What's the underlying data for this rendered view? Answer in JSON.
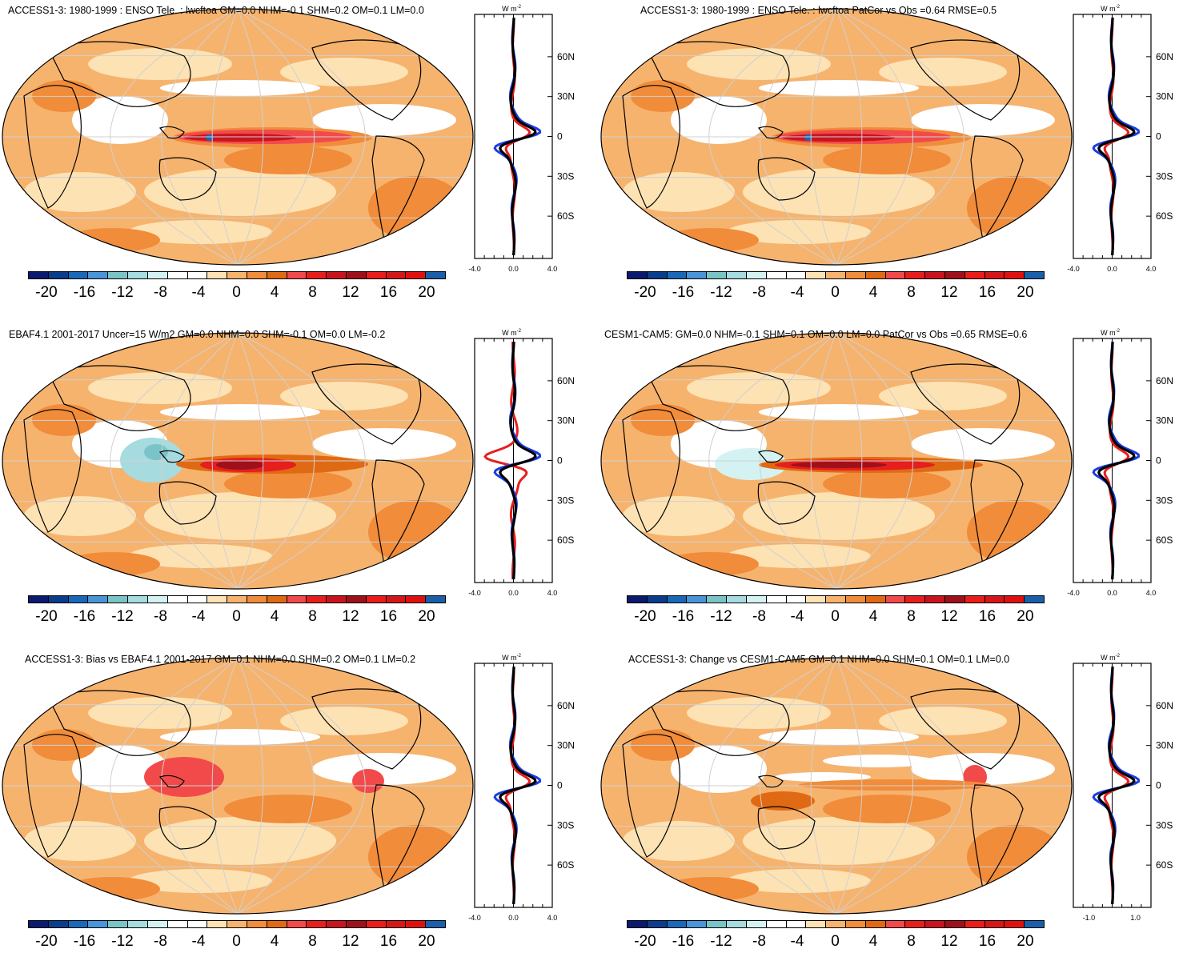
{
  "colorbar": {
    "colors": [
      "#0a1a6e",
      "#0a3d8c",
      "#1a68b8",
      "#4a94d8",
      "#7ac4c8",
      "#a6dbe0",
      "#d4f2f2",
      "#ffffff",
      "#ffffff",
      "#fde2b4",
      "#f6b36e",
      "#f08c3a",
      "#e06a14",
      "#f24a4a",
      "#e61e1e",
      "#c8141e",
      "#a0101a",
      "#ea1c1c",
      "#d41818",
      "#e11010",
      "#1a5fa8"
    ],
    "labels": [
      "-20",
      "-16",
      "-12",
      "-8",
      "-4",
      "0",
      "4",
      "8",
      "12",
      "16",
      "20"
    ]
  },
  "zonal": {
    "unit_label": "W m",
    "unit_sup": "-2",
    "lat_labels": [
      "60N",
      "30N",
      "0",
      "30S",
      "60S"
    ]
  },
  "panels": [
    {
      "id": "p1",
      "title": "ACCESS1-3: 1980-1999 : ENSO Tele. : lwcftoa GM=0.0 NHM=-0.1 SHM=0.2 OM=0.1 LM=0.0",
      "xticks": [
        "-4.0",
        "0.0",
        "4.0"
      ]
    },
    {
      "id": "p2",
      "title": "ACCESS1-3: 1980-1999 : ENSO Tele. : lwcftoa PatCor vs Obs =0.64 RMSE=0.5",
      "xticks": [
        "-4.0",
        "0.0",
        "4.0"
      ]
    },
    {
      "id": "p3",
      "title": "EBAF4.1 2001-2017 Uncer=15 W/m2 GM=0.0 NHM=0.0 SHM=-0.1 OM=0.0 LM=-0.2",
      "xticks": [
        "-4.0",
        "0.0",
        "4.0"
      ]
    },
    {
      "id": "p4",
      "title": "CESM1-CAM5: GM=0.0 NHM=-0.1 SHM=0.1 OM=0.0 LM=0.0 PatCor vs Obs =0.65 RMSE=0.6",
      "xticks": [
        "-4.0",
        "0.0",
        "4.0"
      ]
    },
    {
      "id": "p5",
      "title": "ACCESS1-3: Bias vs EBAF4.1 2001-2017 GM=0.1 NHM=0.0 SHM=0.2 OM=0.1 LM=0.2",
      "xticks": [
        "-4.0",
        "0.0",
        "4.0"
      ]
    },
    {
      "id": "p6",
      "title": "ACCESS1-3: Change vs CESM1-CAM5 GM=0.1 NHM=0.0 SHM=0.1 OM=0.1 LM=0.0",
      "xticks": [
        "-1.0",
        "1.0"
      ]
    }
  ]
}
